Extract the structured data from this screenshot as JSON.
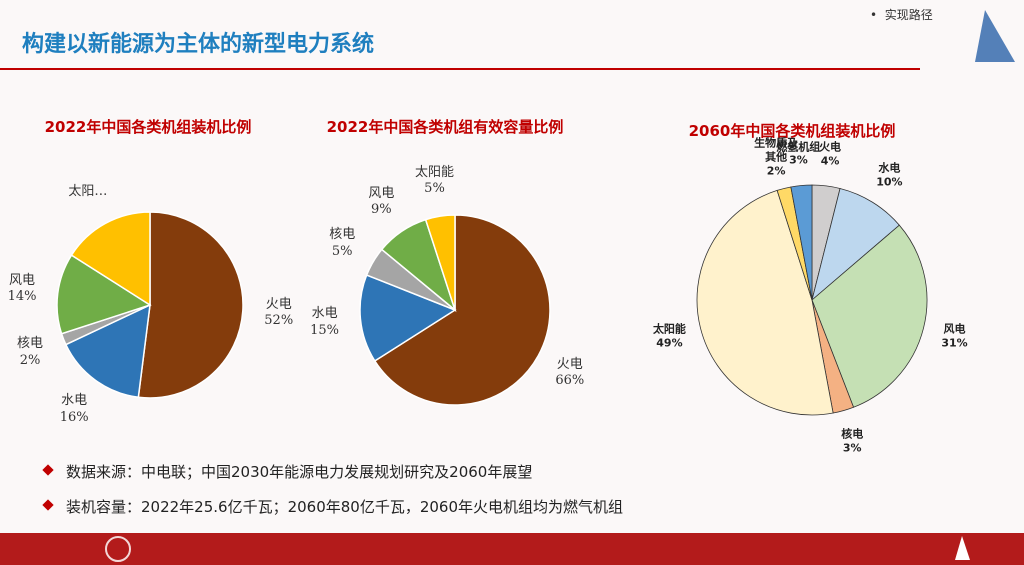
{
  "slide": {
    "title": "构建以新能源为主体的新型电力系统",
    "nav_item": "实现路径",
    "notes": [
      "数据来源：中电联；中国2030年能源电力发展规划研究及2060年展望",
      "装机容量：2022年25.6亿千瓦；2060年80亿千瓦，2060年火电机组均为燃气机组"
    ]
  },
  "chart_data": [
    {
      "type": "pie",
      "title": "2022年中国各类机组装机比例",
      "categories": [
        "火电",
        "水电",
        "核电",
        "风电",
        "太阳…"
      ],
      "values": [
        52,
        16,
        2,
        14,
        16
      ],
      "value_labels": [
        "52%",
        "16%",
        "2%",
        "14%",
        null
      ],
      "colors": [
        "#843c0c",
        "#2e75b6",
        "#a5a5a5",
        "#70ad47",
        "#ffc000"
      ]
    },
    {
      "type": "pie",
      "title": "2022年中国各类机组有效容量比例",
      "categories": [
        "火电",
        "水电",
        "核电",
        "风电",
        "太阳能"
      ],
      "values": [
        66,
        15,
        5,
        9,
        5
      ],
      "value_labels": [
        "66%",
        "15%",
        "5%",
        "9%",
        "5%"
      ],
      "colors": [
        "#843c0c",
        "#2e75b6",
        "#a5a5a5",
        "#70ad47",
        "#ffc000"
      ]
    },
    {
      "type": "pie",
      "title": "2060年中国各类机组装机比例",
      "categories": [
        "火电",
        "水电",
        "风电",
        "核电",
        "太阳能",
        "生物质及其他",
        "燃氢机组"
      ],
      "values": [
        4,
        10,
        31,
        3,
        49,
        2,
        3
      ],
      "value_labels": [
        "4%",
        "10%",
        "31%",
        "3%",
        "49%",
        "2%",
        "3%"
      ],
      "colors": [
        "#d0cece",
        "#bdd7ee",
        "#c5e0b4",
        "#f4b183",
        "#fff2cc",
        "#ffd966",
        "#5b9bd5"
      ]
    }
  ]
}
